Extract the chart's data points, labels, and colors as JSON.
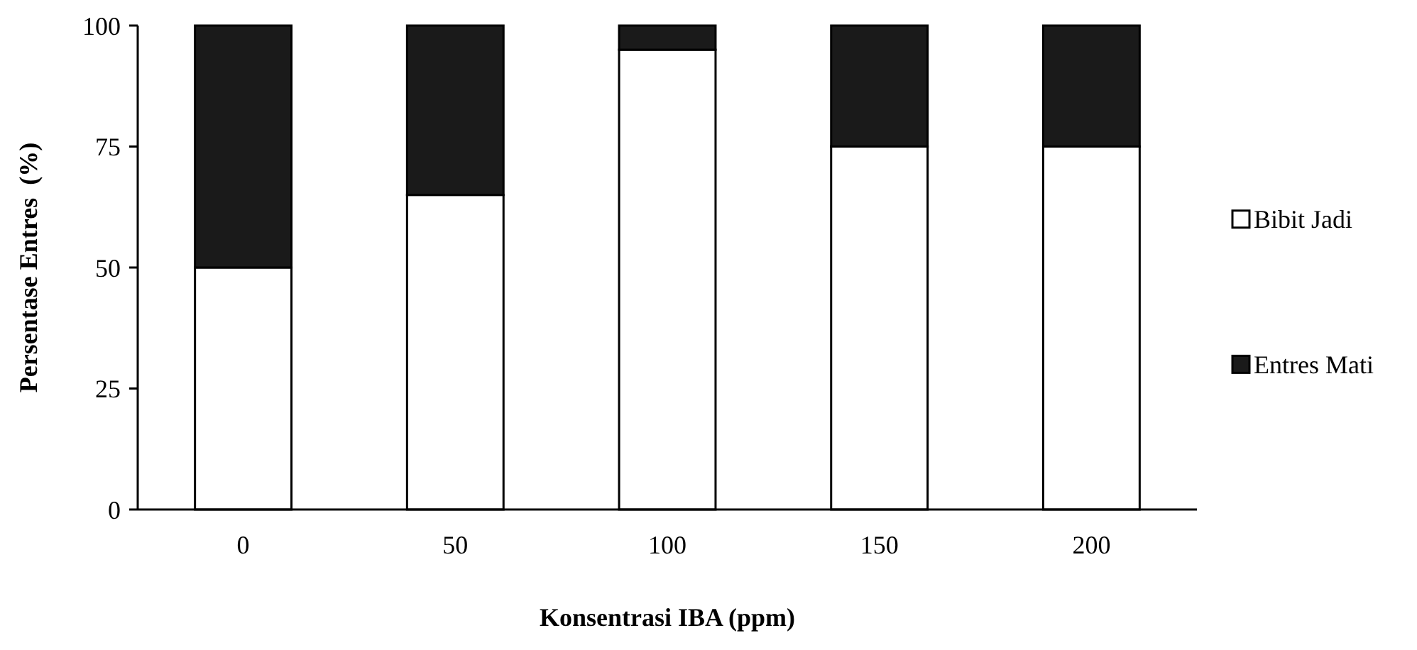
{
  "chart_data": {
    "type": "bar",
    "stacked": true,
    "xlabel": "Konsentrasi IBA (ppm)",
    "ylabel": "Persentase Entres  (%)",
    "categories": [
      "0",
      "50",
      "100",
      "150",
      "200"
    ],
    "series": [
      {
        "name": "Bibit Jadi",
        "color": "#ffffff",
        "values": [
          50,
          65,
          95,
          75,
          75
        ]
      },
      {
        "name": "Entres Mati",
        "color": "#1a1a1a",
        "values": [
          50,
          35,
          5,
          25,
          25
        ]
      }
    ],
    "ylim": [
      0,
      100
    ],
    "yticks": [
      0,
      25,
      50,
      75,
      100
    ],
    "grid": false,
    "legend": "right"
  }
}
